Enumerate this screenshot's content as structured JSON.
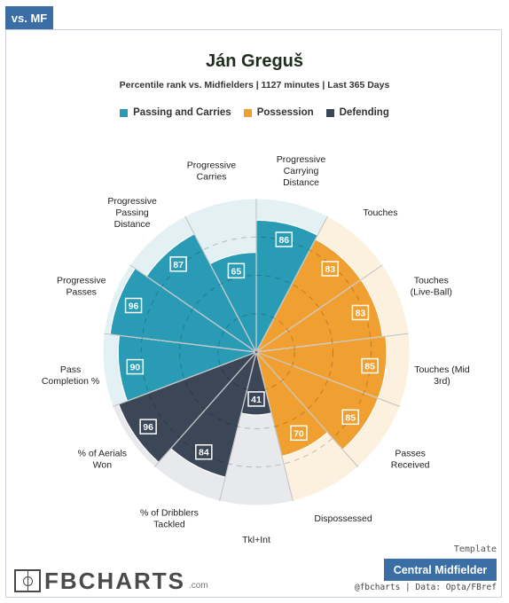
{
  "header": {
    "tab_label": "vs. MF"
  },
  "title": "Ján Greguš",
  "subtitle": "Percentile rank vs. Midfielders | 1127 minutes | Last 365 Days",
  "legend": [
    {
      "label": "Passing and Carries",
      "color": "#2a9bb5"
    },
    {
      "label": "Possession",
      "color": "#f0a030"
    },
    {
      "label": "Defending",
      "color": "#3b4657"
    }
  ],
  "chart_data": {
    "type": "polar-bar",
    "scale_max": 100,
    "categories": [
      {
        "label": "Progressive Carrying Distance",
        "value": 86,
        "group": "Passing and Carries"
      },
      {
        "label": "Touches",
        "value": 83,
        "group": "Possession"
      },
      {
        "label": "Touches (Live-Ball)",
        "value": 83,
        "group": "Possession"
      },
      {
        "label": "Touches (Mid 3rd)",
        "value": 85,
        "group": "Possession"
      },
      {
        "label": "Passes Received",
        "value": 85,
        "group": "Possession"
      },
      {
        "label": "Dispossessed",
        "value": 70,
        "group": "Possession"
      },
      {
        "label": "Tkl+Int",
        "value": 41,
        "group": "Defending"
      },
      {
        "label": "% of Dribblers Tackled",
        "value": 84,
        "group": "Defending"
      },
      {
        "label": "% of Aerials Won",
        "value": 96,
        "group": "Defending"
      },
      {
        "label": "Pass Completion %",
        "value": 90,
        "group": "Passing and Carries"
      },
      {
        "label": "Progressive Passes",
        "value": 96,
        "group": "Passing and Carries"
      },
      {
        "label": "Progressive Passing Distance",
        "value": 87,
        "group": "Passing and Carries"
      },
      {
        "label": "Progressive Carries",
        "value": 65,
        "group": "Passing and Carries"
      }
    ],
    "colors": {
      "Passing and Carries": {
        "fill": "#2a9bb5",
        "bg": "#e3f1f5"
      },
      "Possession": {
        "fill": "#f0a030",
        "bg": "#fcf0de"
      },
      "Defending": {
        "fill": "#3b4657",
        "bg": "#e8e9ec"
      }
    }
  },
  "footer": {
    "template_label": "Template",
    "role_label": "Central Midfielder",
    "credit": "@fbcharts | Data: Opta/FBref",
    "logo_text": "FBCHARTS",
    "logo_domain": ".com"
  }
}
